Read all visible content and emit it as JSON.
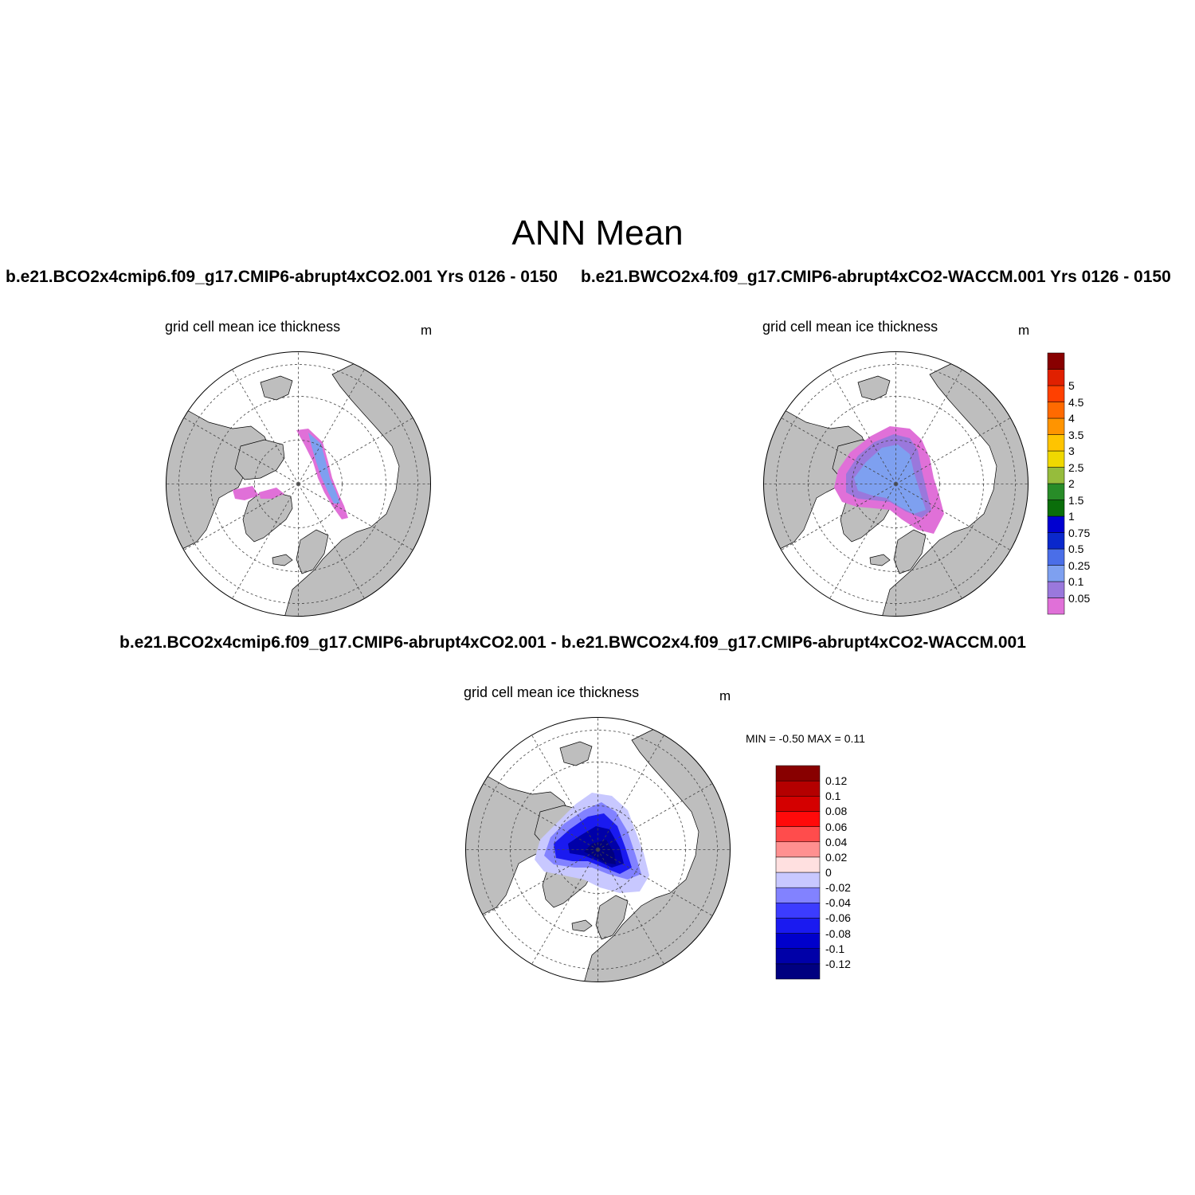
{
  "figure": {
    "title": "ANN Mean"
  },
  "panels": [
    {
      "case_title": "b.e21.BCO2x4cmip6.f09_g17.CMIP6-abrupt4xCO2.001  Yrs 0126 - 0150",
      "subtitle": "grid cell mean ice thickness",
      "units": "m"
    },
    {
      "case_title": "b.e21.BWCO2x4.f09_g17.CMIP6-abrupt4xCO2-WACCM.001  Yrs 0126 - 0150",
      "subtitle": "grid cell mean ice thickness",
      "units": "m"
    },
    {
      "case_title": "b.e21.BCO2x4cmip6.f09_g17.CMIP6-abrupt4xCO2.001 - b.e21.BWCO2x4.f09_g17.CMIP6-abrupt4xCO2-WACCM.001",
      "subtitle": "grid cell mean ice thickness",
      "units": "m",
      "minmax_text": "MIN =  -0.50 MAX =   0.11"
    }
  ],
  "colorbars": {
    "thickness": {
      "labels": [
        "0.05",
        "0.1",
        "0.25",
        "0.5",
        "0.75",
        "1",
        "1.5",
        "2",
        "2.5",
        "3",
        "3.5",
        "4",
        "4.5",
        "5"
      ],
      "colors": [
        "#e070d8",
        "#9a78dc",
        "#7ea0f0",
        "#4a6ee8",
        "#0a28cc",
        "#0000d0",
        "#0a6e0a",
        "#288c28",
        "#96bc3c",
        "#f0d800",
        "#ffc400",
        "#ff9400",
        "#ff6a00",
        "#ff4000",
        "#e02000",
        "#880000"
      ]
    },
    "difference": {
      "labels": [
        "-0.12",
        "-0.1",
        "-0.08",
        "-0.06",
        "-0.04",
        "-0.02",
        "0",
        "0.02",
        "0.04",
        "0.06",
        "0.08",
        "0.1",
        "0.12"
      ],
      "colors": [
        "#000080",
        "#0000a8",
        "#0000cc",
        "#1a1af0",
        "#3c3cff",
        "#8282ff",
        "#c8c8ff",
        "#ffe0e0",
        "#ff9090",
        "#ff4c4c",
        "#ff0a0a",
        "#d40000",
        "#b40000",
        "#880000"
      ]
    }
  },
  "style": {
    "land": "#bebebe",
    "ocean": "#ffffff"
  }
}
